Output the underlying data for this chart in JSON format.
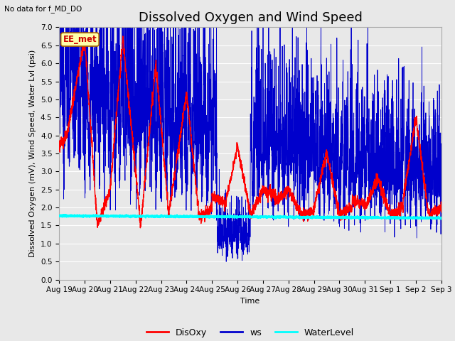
{
  "title": "Dissolved Oxygen and Wind Speed",
  "no_data_text": "No data for f_MD_DO",
  "annotation_text": "EE_met",
  "xlabel": "Time",
  "ylabel": "Dissolved Oxygen (mV), Wind Speed, Water Lvl (psi)",
  "ylim": [
    0.0,
    7.0
  ],
  "yticks": [
    0.0,
    0.5,
    1.0,
    1.5,
    2.0,
    2.5,
    3.0,
    3.5,
    4.0,
    4.5,
    5.0,
    5.5,
    6.0,
    6.5,
    7.0
  ],
  "plot_bg_color": "#e8e8e8",
  "fig_bg_color": "#e8e8e8",
  "disoxy_color": "#ff0000",
  "ws_color": "#0000cc",
  "waterlevel_color": "#00ffff",
  "legend_labels": [
    "DisOxy",
    "ws",
    "WaterLevel"
  ],
  "legend_colors": [
    "#ff0000",
    "#0000cc",
    "#00ffff"
  ],
  "title_fontsize": 13,
  "axis_label_fontsize": 8,
  "tick_fontsize": 7.5,
  "grid_color": "#ffffff",
  "waterlevel_value": 1.77
}
